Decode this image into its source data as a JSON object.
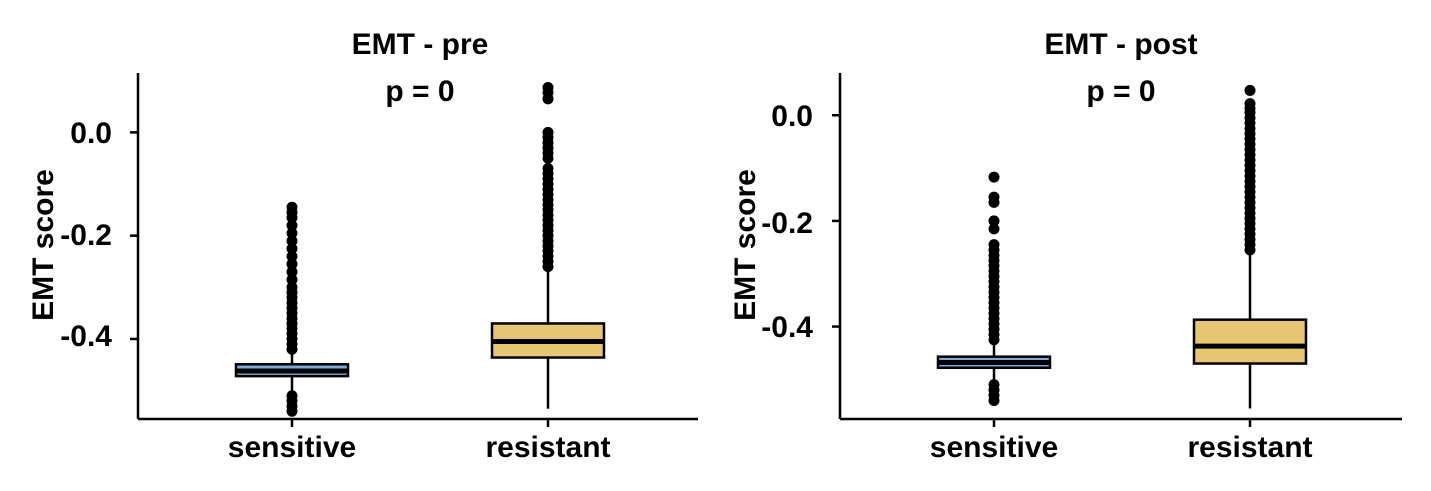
{
  "chart_data": [
    {
      "type": "box",
      "title": "EMT - pre",
      "annotation": "p = 0",
      "ylabel": "EMT score",
      "ylim": [
        -0.555,
        0.115
      ],
      "yticks": [
        0.0,
        -0.2,
        -0.4
      ],
      "ytick_labels": [
        "0.0",
        "-0.2",
        "-0.4"
      ],
      "categories": [
        "sensitive",
        "resistant"
      ],
      "boxes": [
        {
          "category": "sensitive",
          "color": "#7FA7D6",
          "q1": -0.472,
          "median": -0.462,
          "q3": -0.449,
          "whisker_low": -0.505,
          "whisker_high": -0.43,
          "outliers": [
            -0.145,
            -0.155,
            -0.165,
            -0.18,
            -0.195,
            -0.21,
            -0.225,
            -0.24,
            -0.255,
            -0.27,
            -0.285,
            -0.3,
            -0.31,
            -0.32,
            -0.33,
            -0.34,
            -0.35,
            -0.36,
            -0.37,
            -0.38,
            -0.39,
            -0.4,
            -0.41,
            -0.42,
            -0.51,
            -0.52,
            -0.53,
            -0.54
          ]
        },
        {
          "category": "resistant",
          "color": "#E6C672",
          "q1": -0.436,
          "median": -0.405,
          "q3": -0.37,
          "whisker_low": -0.535,
          "whisker_high": -0.27,
          "outliers": [
            0.087,
            0.077,
            0.065,
            0.0,
            -0.01,
            -0.02,
            -0.03,
            -0.04,
            -0.05,
            -0.07,
            -0.08,
            -0.09,
            -0.1,
            -0.11,
            -0.12,
            -0.13,
            -0.14,
            -0.15,
            -0.16,
            -0.17,
            -0.18,
            -0.19,
            -0.2,
            -0.21,
            -0.22,
            -0.23,
            -0.24,
            -0.25,
            -0.26
          ]
        }
      ]
    },
    {
      "type": "box",
      "title": "EMT - post",
      "annotation": "p = 0",
      "ylabel": "EMT score",
      "ylim": [
        -0.575,
        0.08
      ],
      "yticks": [
        0.0,
        -0.2,
        -0.4
      ],
      "ytick_labels": [
        "0.0",
        "-0.2",
        "-0.4"
      ],
      "categories": [
        "sensitive",
        "resistant"
      ],
      "boxes": [
        {
          "category": "sensitive",
          "color": "#7FA7D6",
          "q1": -0.478,
          "median": -0.468,
          "q3": -0.457,
          "whisker_low": -0.5,
          "whisker_high": -0.43,
          "outliers": [
            -0.117,
            -0.155,
            -0.165,
            -0.2,
            -0.215,
            -0.245,
            -0.255,
            -0.265,
            -0.275,
            -0.285,
            -0.295,
            -0.305,
            -0.315,
            -0.325,
            -0.335,
            -0.345,
            -0.355,
            -0.365,
            -0.375,
            -0.385,
            -0.395,
            -0.405,
            -0.415,
            -0.425,
            -0.51,
            -0.52,
            -0.53,
            -0.54
          ]
        },
        {
          "category": "resistant",
          "color": "#E6C672",
          "q1": -0.47,
          "median": -0.437,
          "q3": -0.387,
          "whisker_low": -0.555,
          "whisker_high": -0.26,
          "outliers": [
            0.047,
            0.022,
            0.013,
            0.005,
            -0.005,
            -0.015,
            -0.025,
            -0.035,
            -0.045,
            -0.055,
            -0.065,
            -0.075,
            -0.085,
            -0.095,
            -0.105,
            -0.115,
            -0.125,
            -0.135,
            -0.145,
            -0.155,
            -0.165,
            -0.175,
            -0.185,
            -0.195,
            -0.205,
            -0.215,
            -0.225,
            -0.235,
            -0.245,
            -0.255
          ]
        }
      ]
    }
  ]
}
